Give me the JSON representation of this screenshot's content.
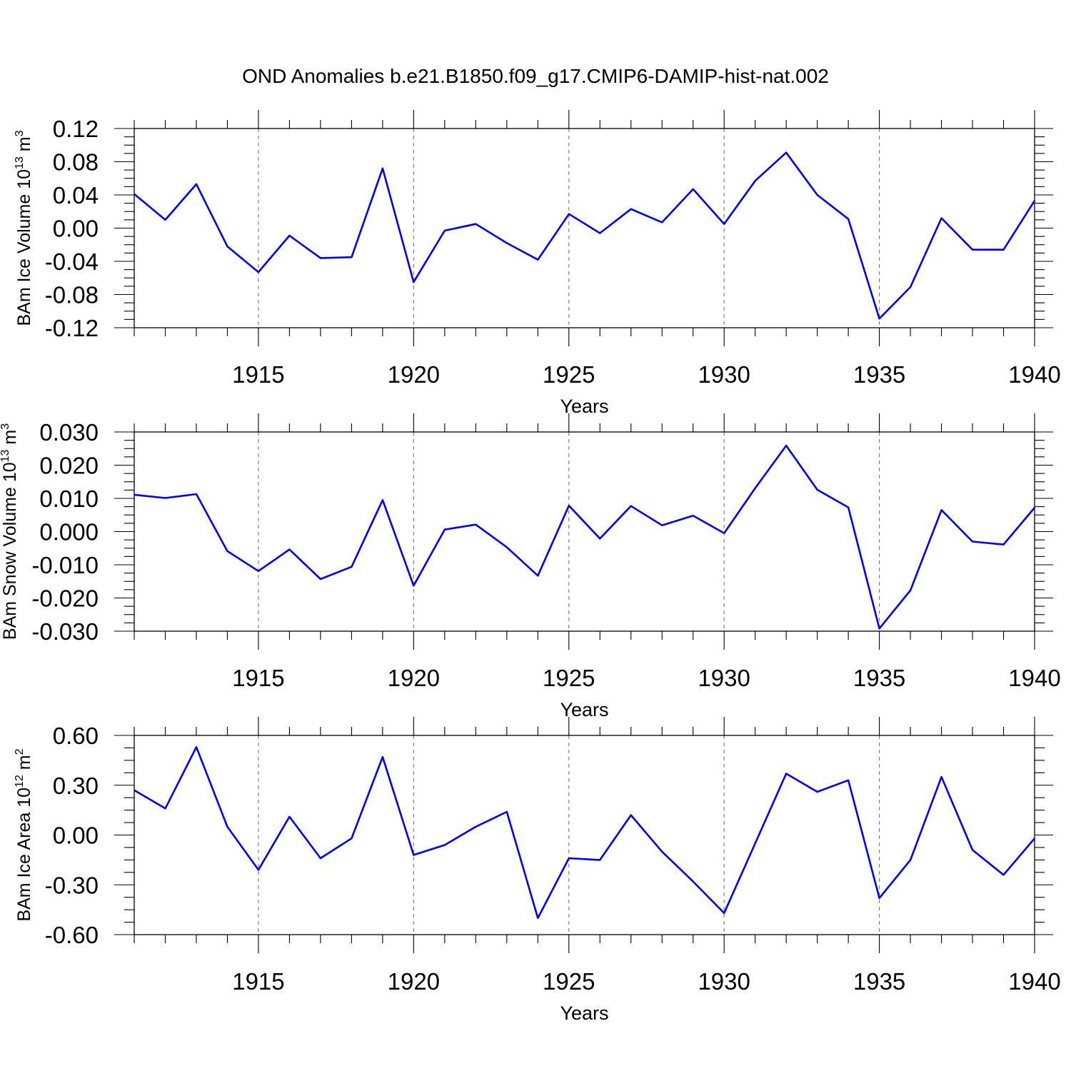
{
  "title": "OND Anomalies b.e21.B1850.f09_g17.CMIP6-DAMIP-hist-nat.002",
  "colors": {
    "series": "#0000ff",
    "grid": "#777777",
    "axes": "#000000"
  },
  "chart_data": [
    {
      "type": "line",
      "ylabel_main": "BAm Ice Volume 10",
      "ylabel_exp": "13",
      "ylabel_unit": " m",
      "ylabel_unit_exp": "3",
      "xlabel": "Years",
      "xlim": [
        1911,
        1940
      ],
      "ylim": [
        -0.12,
        0.12
      ],
      "x_ticks": [
        1915,
        1920,
        1925,
        1930,
        1935,
        1940
      ],
      "x_tick_labels": [
        "1915",
        "1920",
        "1925",
        "1930",
        "1935",
        "1940"
      ],
      "y_ticks": [
        0.12,
        0.08,
        0.04,
        0.0,
        -0.04,
        -0.08,
        -0.12
      ],
      "y_tick_labels": [
        "0.12",
        "0.08",
        "0.04",
        "0.00",
        "-0.04",
        "-0.08",
        "-0.12"
      ],
      "grid": "vertical dashed at major x ticks",
      "x": [
        1911,
        1912,
        1913,
        1914,
        1915,
        1916,
        1917,
        1918,
        1919,
        1920,
        1921,
        1922,
        1923,
        1924,
        1925,
        1926,
        1927,
        1928,
        1929,
        1930,
        1931,
        1932,
        1933,
        1934,
        1935,
        1936,
        1937,
        1938,
        1939,
        1940
      ],
      "values": [
        0.041,
        0.01,
        0.053,
        -0.022,
        -0.053,
        -0.009,
        -0.036,
        -0.035,
        0.072,
        -0.065,
        -0.003,
        0.005,
        -0.018,
        -0.038,
        0.017,
        -0.006,
        0.023,
        0.007,
        0.047,
        0.005,
        0.057,
        0.091,
        0.04,
        0.011,
        -0.109,
        -0.071,
        0.012,
        -0.026,
        -0.026,
        0.033
      ]
    },
    {
      "type": "line",
      "ylabel_main": "BAm Snow Volume 10",
      "ylabel_exp": "13",
      "ylabel_unit": " m",
      "ylabel_unit_exp": "3",
      "xlabel": "Years",
      "xlim": [
        1911,
        1940
      ],
      "ylim": [
        -0.03,
        0.03
      ],
      "x_ticks": [
        1915,
        1920,
        1925,
        1930,
        1935,
        1940
      ],
      "x_tick_labels": [
        "1915",
        "1920",
        "1925",
        "1930",
        "1935",
        "1940"
      ],
      "y_ticks": [
        0.03,
        0.02,
        0.01,
        0.0,
        -0.01,
        -0.02,
        -0.03
      ],
      "y_tick_labels": [
        "0.030",
        "0.020",
        "0.010",
        "0.000",
        "-0.010",
        "-0.020",
        "-0.030"
      ],
      "grid": "vertical dashed at major x ticks",
      "x": [
        1911,
        1912,
        1913,
        1914,
        1915,
        1916,
        1917,
        1918,
        1919,
        1920,
        1921,
        1922,
        1923,
        1924,
        1925,
        1926,
        1927,
        1928,
        1929,
        1930,
        1931,
        1932,
        1933,
        1934,
        1935,
        1936,
        1937,
        1938,
        1939,
        1940
      ],
      "values": [
        0.0111,
        0.0101,
        0.0113,
        -0.0059,
        -0.0119,
        -0.0054,
        -0.0143,
        -0.0106,
        0.0095,
        -0.0163,
        0.0006,
        0.0021,
        -0.0047,
        -0.0133,
        0.0078,
        -0.0021,
        0.0077,
        0.0019,
        0.0048,
        -0.0005,
        0.0131,
        0.0259,
        0.0126,
        0.0073,
        -0.0292,
        -0.0177,
        0.0065,
        -0.003,
        -0.0039,
        0.0072
      ]
    },
    {
      "type": "line",
      "ylabel_main": "BAm Ice Area 10",
      "ylabel_exp": "12",
      "ylabel_unit": " m",
      "ylabel_unit_exp": "2",
      "xlabel": "Years",
      "xlim": [
        1911,
        1940
      ],
      "ylim": [
        -0.6,
        0.6
      ],
      "x_ticks": [
        1915,
        1920,
        1925,
        1930,
        1935,
        1940
      ],
      "x_tick_labels": [
        "1915",
        "1920",
        "1925",
        "1930",
        "1935",
        "1940"
      ],
      "y_ticks": [
        0.6,
        0.3,
        0.0,
        -0.3,
        -0.6
      ],
      "y_tick_labels": [
        "0.60",
        "0.30",
        "0.00",
        "-0.30",
        "-0.60"
      ],
      "grid": "vertical dashed at major x ticks",
      "x": [
        1911,
        1912,
        1913,
        1914,
        1915,
        1916,
        1917,
        1918,
        1919,
        1920,
        1921,
        1922,
        1923,
        1924,
        1925,
        1926,
        1927,
        1928,
        1929,
        1930,
        1931,
        1932,
        1933,
        1934,
        1935,
        1936,
        1937,
        1938,
        1939,
        1940
      ],
      "values": [
        0.27,
        0.16,
        0.53,
        0.05,
        -0.21,
        0.11,
        -0.14,
        -0.02,
        0.47,
        -0.12,
        -0.06,
        0.05,
        0.14,
        -0.5,
        -0.14,
        -0.15,
        0.12,
        -0.1,
        -0.28,
        -0.47,
        -0.05,
        0.37,
        0.26,
        0.33,
        -0.38,
        -0.15,
        0.35,
        -0.09,
        -0.24,
        -0.02
      ]
    }
  ]
}
